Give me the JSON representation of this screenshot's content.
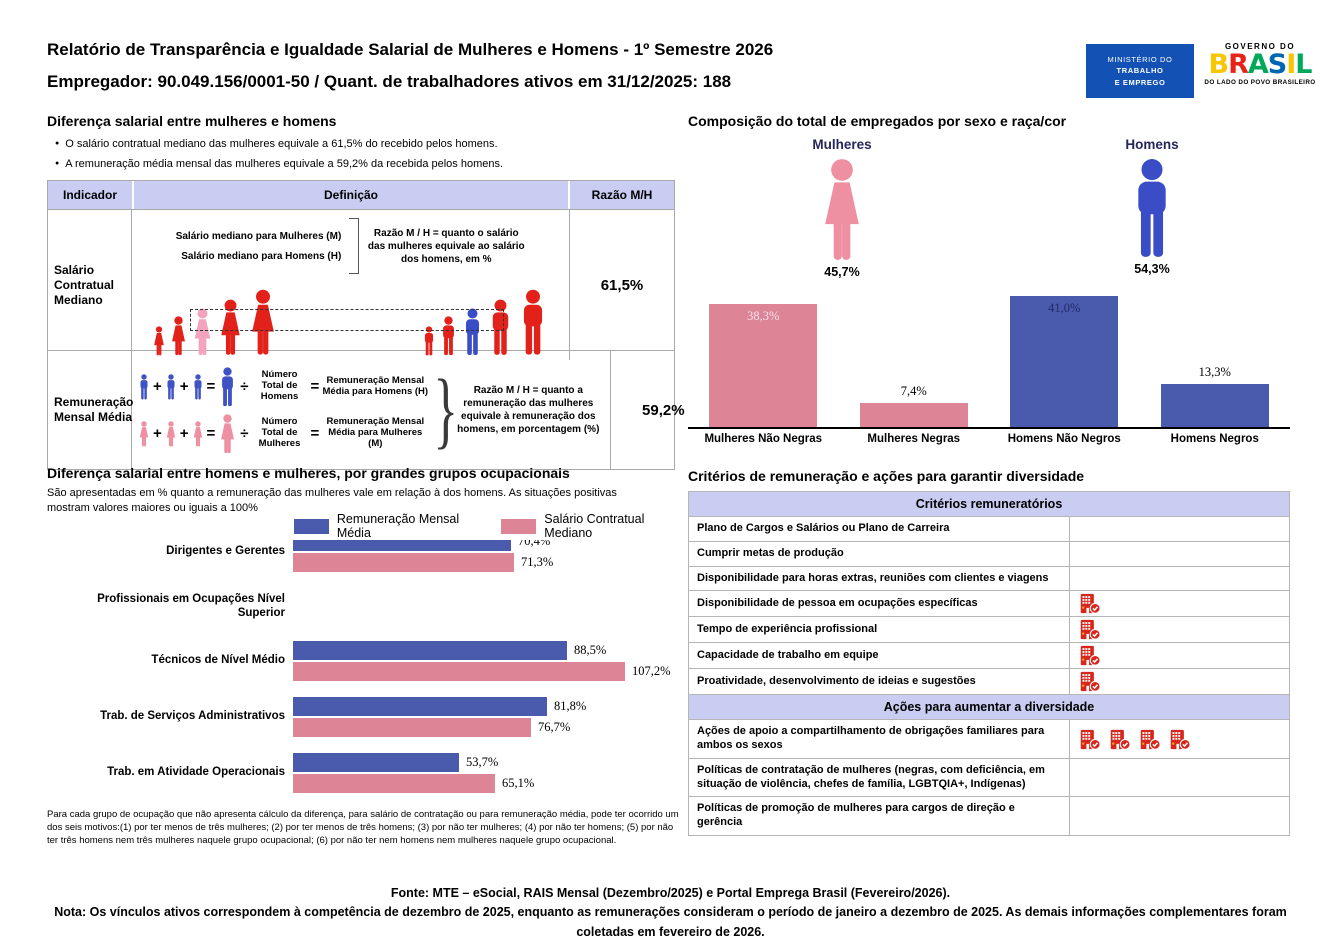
{
  "header": {
    "title": "Relatório de Transparência e Igualdade Salarial de Mulheres e Homens - 1º Semestre 2026",
    "subtitle": "Empregador: 90.049.156/0001-50 / Quant. de trabalhadores ativos em 31/12/2025: 188",
    "logo_mte": {
      "line1": "MINISTÉRIO DO",
      "line2": "TRABALHO",
      "line3": "E EMPREGO"
    },
    "logo_gov": {
      "top": "GOVERNO DO",
      "brand_letters": [
        {
          "ch": "B",
          "color": "#f7c600"
        },
        {
          "ch": "R",
          "color": "#e52317"
        },
        {
          "ch": "A",
          "color": "#00a859"
        },
        {
          "ch": "S",
          "color": "#0066b3"
        },
        {
          "ch": "I",
          "color": "#f7c600"
        },
        {
          "ch": "L",
          "color": "#00a859"
        }
      ],
      "bottom": "DO LADO DO POVO BRASILEIRO"
    }
  },
  "colors": {
    "red_figure": "#e3211b",
    "pink_highlight_figure": "#f2a3bd",
    "blue_highlight_figure": "#3b4dc6",
    "blue_icon": "#4053c4",
    "salmon_icon": "#ee8fa2",
    "female_big_icon": "#ee8fa2",
    "male_big_icon": "#3b4dc6",
    "navy_bar": "#4a5aad",
    "pink_bar": "#dd8497",
    "lavender_header": "#c9cdf2",
    "gov_blue": "#1351b4",
    "building_icon_red": "#d9261c",
    "navy_label_text": "#26265e"
  },
  "left_top": {
    "title": "Diferença salarial entre mulheres e homens",
    "bullets": [
      "O salário contratual mediano das mulheres equivale a 61,5% do recebido pelos homens.",
      "A remuneração média mensal das mulheres equivale a 59,2% da recebida pelos homens."
    ],
    "table": {
      "headers": [
        "Indicador",
        "Definição",
        "Razão M/H"
      ],
      "row1": {
        "indicator": "Salário Contratual Mediano",
        "line1": "Salário mediano para Mulheres (M)",
        "line2": "Salário mediano para Homens (H)",
        "note": "Razão M / H = quanto o salário das mulheres equivale ao salário dos homens, em %",
        "ratio": "61,5%"
      },
      "row2": {
        "indicator": "Remuneração Mensal Média",
        "plus": "+",
        "equals": "=",
        "divide": "÷",
        "men_divisor": "Número Total de Homens",
        "men_result": "Remuneração Mensal Média para Homens (H)",
        "women_divisor": "Número Total de Mulheres",
        "women_result": "Remuneração Mensal Média para Mulheres (M)",
        "note": "Razão M / H = quanto a remuneração das mulheres equivale à remuneração dos homens, em porcentagem (%)",
        "ratio": "59,2%"
      }
    }
  },
  "right_top": {
    "title": "Composição do total de empregados por sexo e raça/cor",
    "female": {
      "label": "Mulheres",
      "pct": "45,7%"
    },
    "male": {
      "label": "Homens",
      "pct": "54,3%"
    }
  },
  "left_bottom": {
    "title": "Diferença salarial entre homens e mulheres, por grandes grupos ocupacionais",
    "subtitle": "São apresentadas em % quanto a remuneração das mulheres vale em relação à dos homens. As situações positivas mostram valores maiores ou iguais a 100%",
    "footnote": "Para cada grupo de ocupação que não apresenta cálculo da diferença, para salário de contratação ou para remuneração média, pode ter ocorrido um dos seis motivos:(1) por ter menos de três mulheres; (2) por ter menos de três homens; (3) por não ter mulheres; (4) por não ter homens; (5) por não ter três homens nem três mulheres naquele grupo ocupacional; (6) por não ter nem homens nem mulheres naquele grupo ocupacional."
  },
  "right_bottom": {
    "title": "Critérios de remuneração e ações para garantir diversidade",
    "sections": [
      {
        "header": "Critérios remuneratórios",
        "rows": [
          {
            "label": "Plano de Cargos e Salários ou Plano de Carreira",
            "icons": 0
          },
          {
            "label": "Cumprir metas de produção",
            "icons": 0
          },
          {
            "label": "Disponibilidade para horas extras, reuniões com clientes e viagens",
            "icons": 0
          },
          {
            "label": "Disponibilidade de pessoa em ocupações específicas",
            "icons": 1
          },
          {
            "label": "Tempo de experiência profissional",
            "icons": 1
          },
          {
            "label": "Capacidade de trabalho em equipe",
            "icons": 1
          },
          {
            "label": "Proatividade, desenvolvimento de ideias e sugestões",
            "icons": 1
          }
        ]
      },
      {
        "header": "Ações para aumentar a diversidade",
        "rows": [
          {
            "label": "Ações de apoio a compartilhamento de obrigações familiares para ambos os sexos",
            "icons": 4
          },
          {
            "label": "Políticas de contratação de mulheres (negras, com deficiência, em situação de violência, chefes de família, LGBTQIA+, Indígenas)",
            "icons": 0
          },
          {
            "label": "Políticas de promoção de mulheres para cargos de direção e gerência",
            "icons": 0
          }
        ]
      }
    ]
  },
  "footer": {
    "fonte": "Fonte: MTE – eSocial, RAIS Mensal (Dezembro/2025) e Portal Emprega Brasil (Fevereiro/2026).",
    "nota": "Nota: Os vínculos ativos correspondem à competência de dezembro de 2025, enquanto as remunerações consideram o período de janeiro a dezembro de 2025. As demais informações complementares foram coletadas em fevereiro de 2026."
  },
  "chart_data": [
    {
      "type": "bar",
      "title": "Composição do total de empregados por sexo e raça/cor",
      "categories": [
        "Mulheres Não Negras",
        "Mulheres Negras",
        "Homens Não Negros",
        "Homens Negros"
      ],
      "values": [
        38.3,
        7.4,
        41.0,
        13.3
      ],
      "value_labels": [
        "38,3%",
        "7,4%",
        "41,0%",
        "13,3%"
      ],
      "bar_colors": [
        "#dd8497",
        "#dd8497",
        "#4a5aad",
        "#4a5aad"
      ],
      "label_positions": [
        "inside",
        "above",
        "inside",
        "above"
      ],
      "label_colors": [
        "#f6e3e7",
        "#000000",
        "#222a68",
        "#000000"
      ],
      "summary": {
        "Mulheres": "45,7%",
        "Homens": "54,3%"
      },
      "ylim": [
        0,
        43
      ],
      "legend_position": "none"
    },
    {
      "type": "grouped-bar-horizontal",
      "title": "Diferença salarial entre homens e mulheres, por grandes grupos ocupacionais",
      "categories": [
        "Dirigentes e Gerentes",
        "Profissionais em Ocupações Nível Superior",
        "Técnicos de Nível Médio",
        "Trab. de Serviços Administrativos",
        "Trab. em Atividade Operacionais"
      ],
      "series": [
        {
          "name": "Remuneração Mensal Média",
          "color": "#4a5aad",
          "values": [
            70.4,
            null,
            88.5,
            81.8,
            53.7
          ],
          "value_labels": [
            "70,4%",
            "",
            "88,5%",
            "81,8%",
            "53,7%"
          ]
        },
        {
          "name": "Salário Contratual Mediano",
          "color": "#dd8497",
          "values": [
            71.3,
            null,
            107.2,
            76.7,
            65.1
          ],
          "value_labels": [
            "71,3%",
            "",
            "107,2%",
            "76,7%",
            "65,1%"
          ]
        }
      ],
      "xlim": [
        0,
        120
      ],
      "legend_position": "top"
    }
  ],
  "illustrations": {
    "median_salary_left": {
      "figure": "woman",
      "heights": [
        30,
        40,
        48,
        57,
        67
      ],
      "colors": [
        "#e3211b",
        "#e3211b",
        "#f2a3bd",
        "#e3211b",
        "#e3211b"
      ]
    },
    "median_salary_right": {
      "figure": "man",
      "heights": [
        30,
        40,
        48,
        57,
        67
      ],
      "colors": [
        "#e3211b",
        "#e3211b",
        "#3b4dc6",
        "#e3211b",
        "#e3211b"
      ]
    },
    "mean_rem_men": {
      "figure": "man",
      "color": "#4053c4",
      "small": 26,
      "big": 40
    },
    "mean_rem_women": {
      "figure": "woman",
      "color": "#ee8fa2",
      "small": 26,
      "big": 40
    }
  }
}
